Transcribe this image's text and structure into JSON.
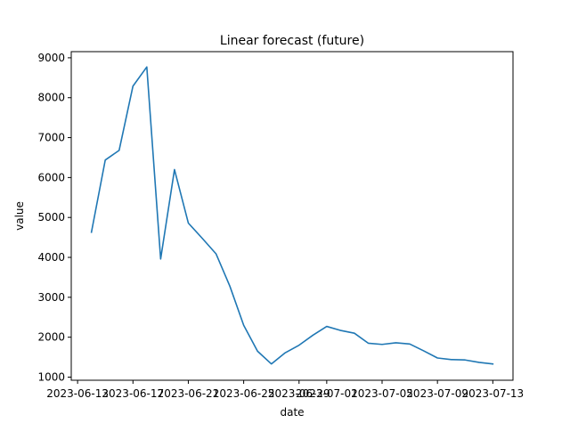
{
  "chart_data": {
    "type": "line",
    "title": "Linear forecast (future)",
    "xlabel": "date",
    "ylabel": "value",
    "x": [
      "2023-06-14",
      "2023-06-15",
      "2023-06-16",
      "2023-06-17",
      "2023-06-18",
      "2023-06-19",
      "2023-06-20",
      "2023-06-21",
      "2023-06-22",
      "2023-06-23",
      "2023-06-24",
      "2023-06-25",
      "2023-06-26",
      "2023-06-27",
      "2023-06-28",
      "2023-06-29",
      "2023-06-30",
      "2023-07-01",
      "2023-07-02",
      "2023-07-03",
      "2023-07-04",
      "2023-07-05",
      "2023-07-06",
      "2023-07-07",
      "2023-07-08",
      "2023-07-09",
      "2023-07-10",
      "2023-07-11",
      "2023-07-12",
      "2023-07-13"
    ],
    "series": [
      {
        "values": [
          4630,
          6440,
          6680,
          8290,
          8770,
          3960,
          6200,
          4860,
          4480,
          4090,
          3280,
          2300,
          1650,
          1330,
          1610,
          1800,
          2050,
          2270,
          2170,
          2100,
          1850,
          1820,
          1860,
          1830,
          1660,
          1480,
          1440,
          1430,
          1370,
          1330
        ],
        "color": "#1f77b4"
      }
    ],
    "xticks": [
      "2023-06-13",
      "2023-06-17",
      "2023-06-21",
      "2023-06-25",
      "2023-06-29",
      "2023-07-01",
      "2023-07-05",
      "2023-07-09",
      "2023-07-13"
    ],
    "yticks": [
      1000,
      2000,
      3000,
      4000,
      5000,
      6000,
      7000,
      8000,
      9000
    ],
    "ylim": [
      922,
      9154
    ],
    "xlim": [
      "2023-06-12T13:00",
      "2023-07-14T11:00"
    ],
    "grid": false,
    "legend": "none"
  }
}
